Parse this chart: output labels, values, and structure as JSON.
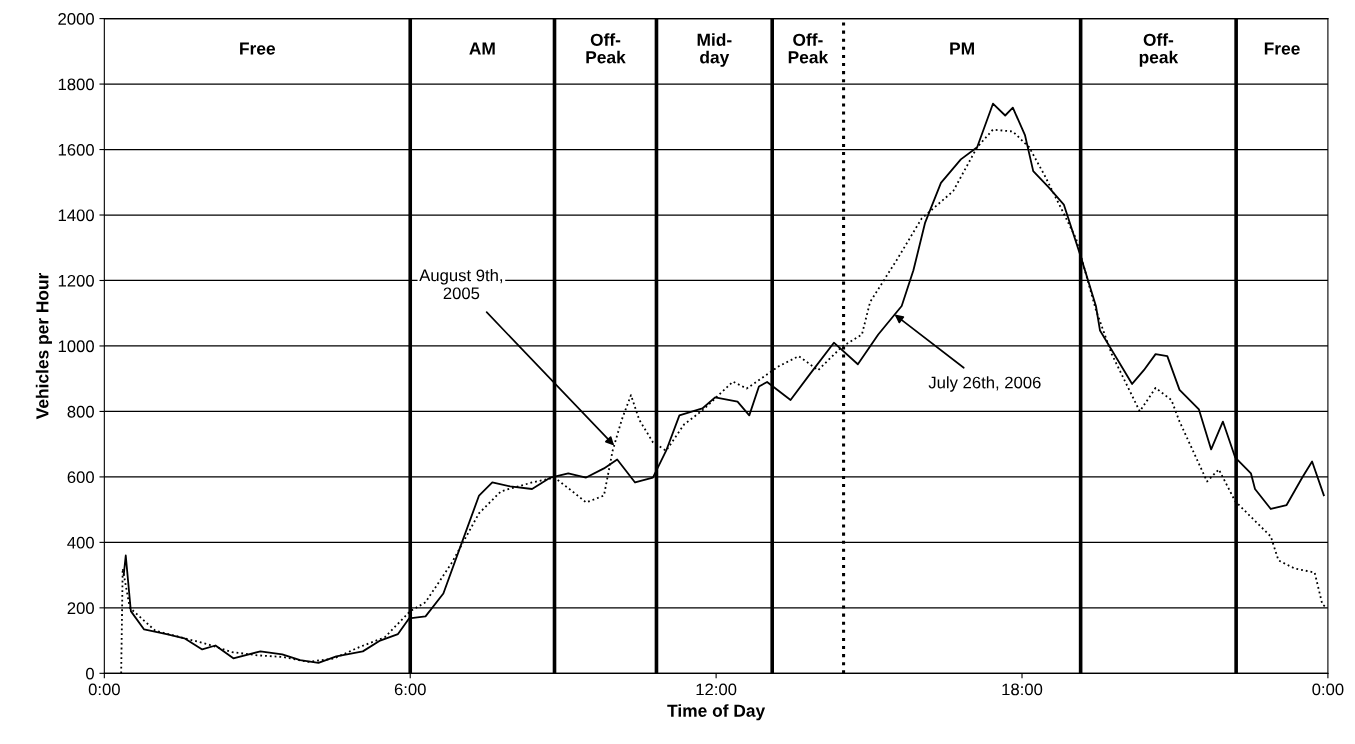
{
  "chart_data": {
    "type": "line",
    "xlabel": "Time of Day",
    "ylabel": "Vehicles per Hour",
    "xlim": [
      0,
      24
    ],
    "xticks": [
      {
        "value": 0,
        "label": "0:00"
      },
      {
        "value": 6,
        "label": "6:00"
      },
      {
        "value": 12,
        "label": "12:00"
      },
      {
        "value": 18,
        "label": "18:00"
      },
      {
        "value": 24,
        "label": "0:00"
      }
    ],
    "ylim": [
      0,
      2000
    ],
    "yticks": [
      0,
      200,
      400,
      600,
      800,
      1000,
      1200,
      1400,
      1600,
      1800,
      2000
    ],
    "grid": "y",
    "legend": false,
    "marker": "none",
    "series": [
      {
        "color": "#000000",
        "line_style": "solid",
        "x": [
          0.38,
          0.42,
          0.52,
          0.78,
          1.22,
          1.57,
          1.92,
          2.18,
          2.53,
          3.06,
          3.49,
          3.84,
          4.2,
          4.55,
          5.07,
          5.41,
          5.76,
          5.98,
          6.3,
          6.65,
          7.0,
          7.35,
          7.61,
          7.96,
          8.39,
          8.75,
          9.1,
          9.45,
          9.8,
          10.06,
          10.41,
          10.76,
          11.02,
          11.28,
          11.73,
          11.98,
          12.42,
          12.65,
          12.84,
          13.0,
          13.46,
          13.84,
          14.31,
          14.78,
          15.18,
          15.64,
          15.87,
          16.1,
          16.41,
          16.8,
          17.12,
          17.43,
          17.67,
          17.82,
          18.06,
          18.22,
          18.52,
          18.82,
          19.14,
          19.45,
          19.53,
          20.16,
          20.39,
          20.62,
          20.85,
          21.09,
          21.47,
          21.71,
          21.94,
          22.18,
          22.49,
          22.57,
          22.88,
          23.19,
          23.5,
          23.69,
          23.92
        ],
        "values": [
          300,
          360,
          190,
          134,
          120,
          107,
          73,
          85,
          46,
          67,
          58,
          40,
          32,
          52,
          67,
          100,
          120,
          168,
          174,
          244,
          394,
          543,
          583,
          571,
          563,
          598,
          611,
          598,
          626,
          653,
          583,
          598,
          680,
          788,
          809,
          843,
          830,
          788,
          876,
          890,
          835,
          914,
          1010,
          944,
          1035,
          1122,
          1231,
          1377,
          1498,
          1570,
          1607,
          1740,
          1704,
          1728,
          1643,
          1534,
          1485,
          1432,
          1279,
          1122,
          1047,
          884,
          926,
          975,
          969,
          866,
          806,
          684,
          769,
          660,
          611,
          563,
          502,
          514,
          599,
          647,
          544
        ]
      },
      {
        "color": "#000000",
        "line_style": "dotted",
        "x": [
          0.33,
          0.36,
          0.5,
          1.0,
          1.5,
          2.0,
          2.5,
          3.0,
          3.5,
          4.0,
          4.5,
          5.0,
          5.5,
          6.0,
          6.3,
          6.82,
          7.35,
          7.78,
          8.39,
          8.83,
          9.18,
          9.45,
          9.8,
          9.97,
          10.15,
          10.33,
          10.49,
          10.76,
          11.02,
          11.37,
          11.73,
          12.33,
          12.6,
          13.23,
          13.62,
          14.0,
          14.47,
          14.86,
          15.02,
          15.56,
          16.03,
          16.65,
          17.12,
          17.43,
          17.82,
          18.14,
          18.44,
          18.75,
          19.06,
          19.45,
          19.76,
          20.31,
          20.62,
          20.93,
          21.09,
          21.63,
          21.86,
          22.18,
          22.49,
          22.88,
          23.03,
          23.35,
          23.74,
          23.89,
          23.98
        ],
        "values": [
          0,
          320,
          200,
          130,
          110,
          90,
          65,
          55,
          50,
          35,
          45,
          80,
          110,
          190,
          217,
          339,
          489,
          556,
          583,
          598,
          556,
          522,
          543,
          680,
          775,
          850,
          775,
          706,
          680,
          760,
          803,
          891,
          870,
          938,
          969,
          926,
          998,
          1035,
          1134,
          1267,
          1389,
          1473,
          1607,
          1661,
          1655,
          1607,
          1522,
          1426,
          1328,
          1110,
          975,
          800,
          872,
          835,
          769,
          586,
          623,
          526,
          478,
          418,
          345,
          320,
          308,
          211,
          200
        ]
      }
    ],
    "ref_lines": [
      {
        "axis": "x",
        "value": 6.0,
        "line_style": "solid"
      },
      {
        "axis": "x",
        "value": 8.83,
        "line_style": "solid"
      },
      {
        "axis": "x",
        "value": 10.83,
        "line_style": "solid"
      },
      {
        "axis": "x",
        "value": 13.1,
        "line_style": "solid"
      },
      {
        "axis": "x",
        "value": 14.5,
        "line_style": "dotted"
      },
      {
        "axis": "x",
        "value": 19.15,
        "line_style": "solid"
      },
      {
        "axis": "x",
        "value": 22.2,
        "line_style": "solid"
      }
    ],
    "annotations": [
      "Free",
      "AM",
      "Off-\nPeak",
      "Mid-\nday",
      "Off-\nPeak",
      "PM",
      "Off-\npeak",
      "Free",
      {
        "text": "August 9th,\n2005",
        "x": 10.0,
        "y": 696
      },
      {
        "text": "July 26th, 2006",
        "x": 15.5,
        "y": 1096
      }
    ]
  }
}
